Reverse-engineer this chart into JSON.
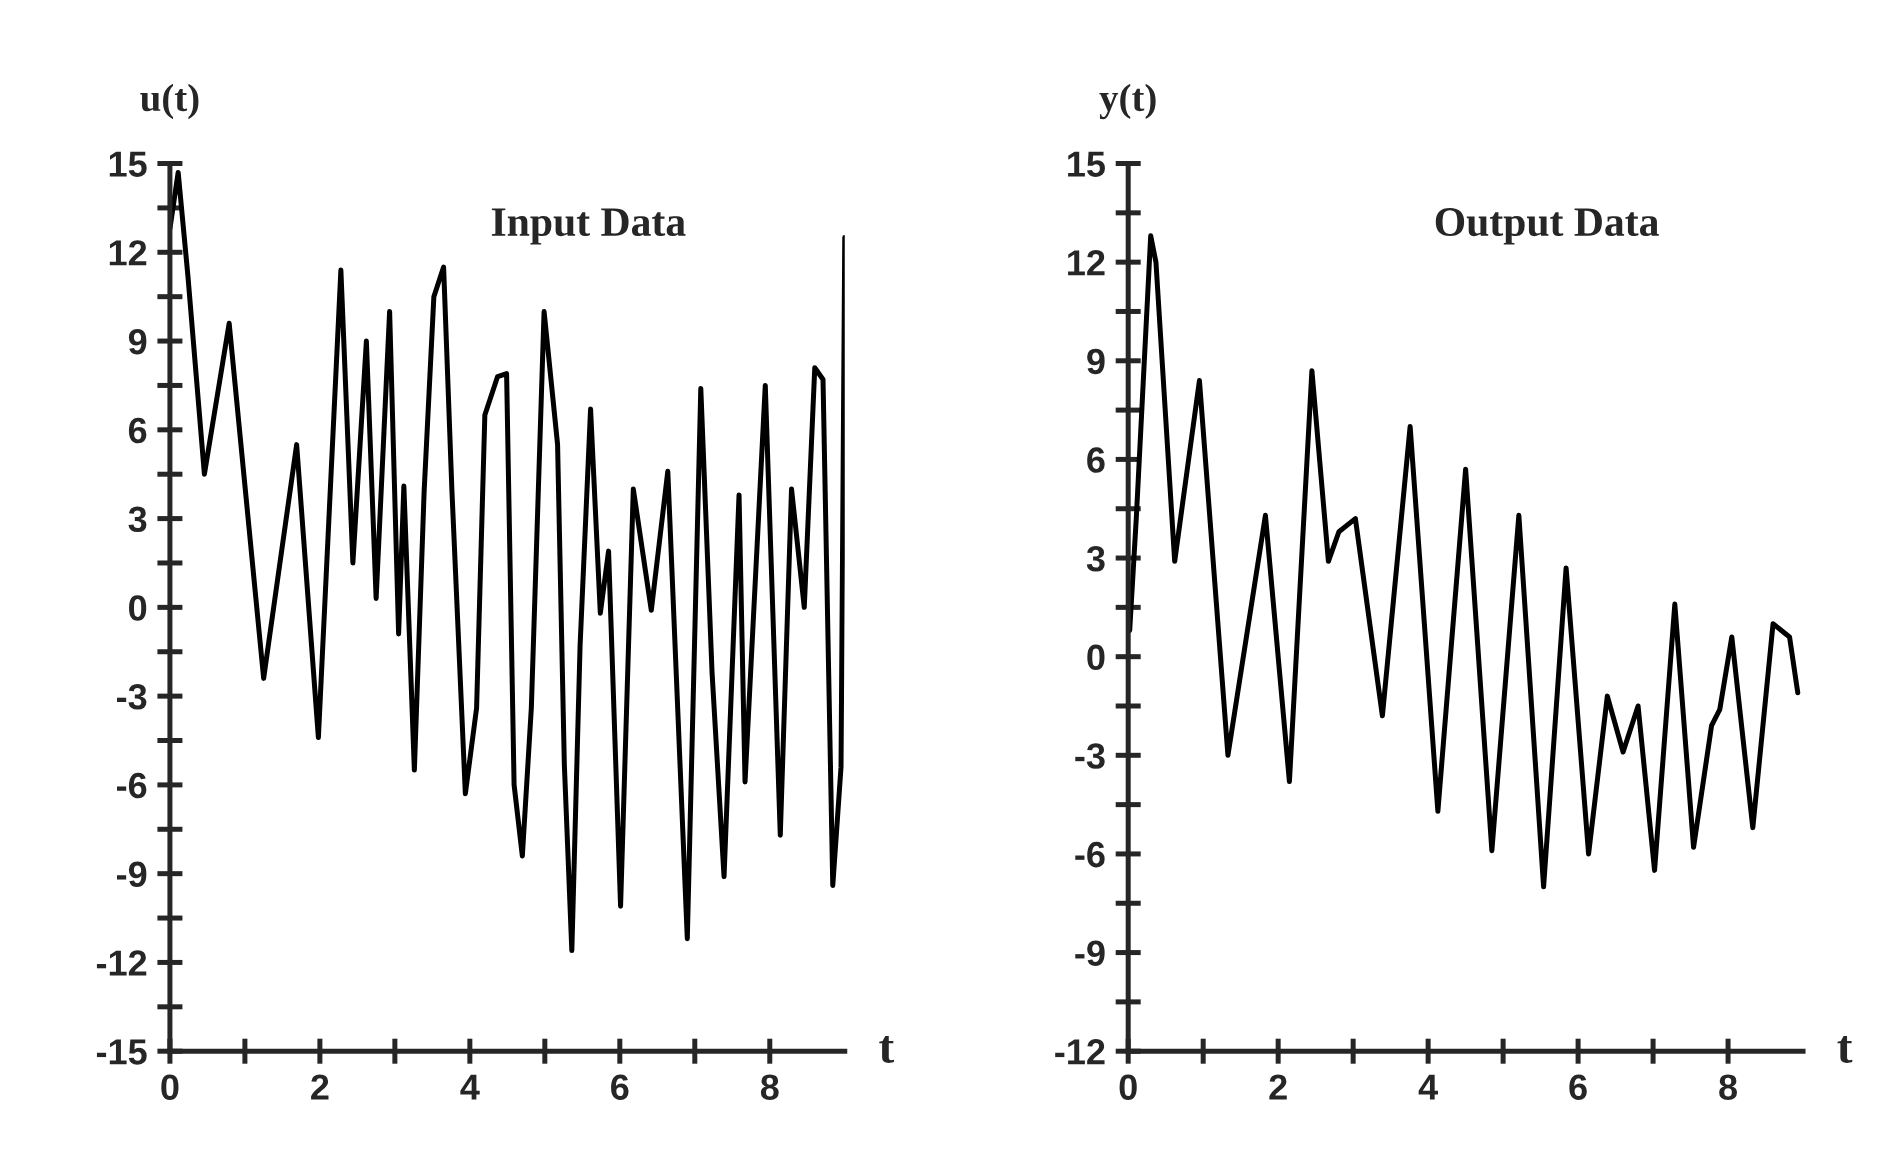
{
  "chart_data": [
    {
      "type": "line",
      "title": "Input Data",
      "xlabel": "t",
      "ylabel": "u(t)",
      "xlim": [
        0,
        9
      ],
      "ylim": [
        -15,
        15
      ],
      "xticks": [
        0,
        {
          "value": 1,
          "label": null
        },
        2,
        {
          "value": 3,
          "label": null
        },
        4,
        {
          "value": 5,
          "label": null
        },
        6,
        {
          "value": 7,
          "label": null
        },
        8
      ],
      "yticks": [
        -15,
        {
          "value": -13.5,
          "label": null
        },
        -12,
        {
          "value": -10.5,
          "label": null
        },
        -9,
        {
          "value": -7.5,
          "label": null
        },
        -6,
        {
          "value": -4.5,
          "label": null
        },
        -3,
        {
          "value": -1.5,
          "label": null
        },
        0,
        {
          "value": 1.5,
          "label": null
        },
        3,
        {
          "value": 4.5,
          "label": null
        },
        6,
        {
          "value": 7.5,
          "label": null
        },
        9,
        {
          "value": 10.5,
          "label": null
        },
        12,
        {
          "value": 13.5,
          "label": null
        },
        15
      ],
      "grid": false,
      "legend": false,
      "series": [
        {
          "color": "#000000",
          "x": [
            0,
            0.11,
            0.24,
            0.46,
            0.79,
            1.25,
            1.69,
            1.98,
            2.28,
            2.44,
            2.62,
            2.75,
            2.93,
            3.05,
            3.12,
            3.26,
            3.39,
            3.52,
            3.65,
            3.76,
            3.94,
            4.09,
            4.2,
            4.37,
            4.49,
            4.59,
            4.7,
            4.82,
            4.99,
            5.17,
            5.26,
            5.36,
            5.47,
            5.61,
            5.74,
            5.85,
            6.01,
            6.18,
            6.42,
            6.64,
            6.9,
            7.08,
            7.23,
            7.39,
            7.59,
            7.67,
            7.94,
            8.14,
            8.29,
            8.46,
            8.6,
            8.71,
            8.84,
            8.95,
            9.0
          ],
          "values": [
            12.8,
            14.7,
            11.2,
            4.5,
            9.6,
            -2.4,
            5.5,
            -4.4,
            11.4,
            1.5,
            9.0,
            0.3,
            10.0,
            -0.9,
            4.1,
            -5.5,
            3.9,
            10.5,
            11.5,
            4.0,
            -6.3,
            -3.4,
            6.5,
            7.8,
            7.9,
            -6.0,
            -8.4,
            -3.4,
            10.0,
            5.5,
            -5.3,
            -11.6,
            -1.3,
            6.7,
            -0.2,
            1.9,
            -10.1,
            4.0,
            -0.1,
            4.6,
            -11.2,
            7.4,
            -2.2,
            -9.1,
            3.8,
            -5.9,
            7.5,
            -7.7,
            4.0,
            0.0,
            8.1,
            7.7,
            -9.4,
            -5.4,
            12.5
          ]
        }
      ]
    },
    {
      "type": "line",
      "title": "Output Data",
      "xlabel": "t",
      "ylabel": "y(t)",
      "xlim": [
        0,
        9
      ],
      "ylim": [
        -12,
        15
      ],
      "xticks": [
        0,
        {
          "value": 1,
          "label": null
        },
        2,
        {
          "value": 3,
          "label": null
        },
        4,
        {
          "value": 5,
          "label": null
        },
        6,
        {
          "value": 7,
          "label": null
        },
        8
      ],
      "yticks": [
        -12,
        {
          "value": -10.5,
          "label": null
        },
        -9,
        {
          "value": -7.5,
          "label": null
        },
        -6,
        {
          "value": -4.5,
          "label": null
        },
        -3,
        {
          "value": -1.5,
          "label": null
        },
        0,
        {
          "value": 1.5,
          "label": null
        },
        3,
        {
          "value": 4.5,
          "label": null
        },
        6,
        {
          "value": 7.5,
          "label": null
        },
        9,
        {
          "value": 10.5,
          "label": null
        },
        12,
        {
          "value": 13.5,
          "label": null
        },
        15
      ],
      "grid": false,
      "legend": false,
      "series": [
        {
          "color": "#000000",
          "x": [
            0.02,
            0.11,
            0.3,
            0.37,
            0.62,
            0.95,
            1.33,
            1.83,
            2.15,
            2.45,
            2.67,
            2.81,
            3.03,
            3.39,
            3.76,
            4.13,
            4.5,
            4.85,
            5.21,
            5.54,
            5.84,
            6.14,
            6.39,
            6.6,
            6.8,
            7.02,
            7.29,
            7.54,
            7.78,
            7.89,
            8.05,
            8.33,
            8.6,
            8.82,
            8.93
          ],
          "values": [
            0.8,
            4.3,
            12.8,
            12.0,
            2.9,
            8.4,
            -3.0,
            4.3,
            -3.8,
            8.7,
            2.9,
            3.8,
            4.2,
            -1.8,
            7.0,
            -4.7,
            5.7,
            -5.9,
            4.3,
            -7.0,
            2.7,
            -6.0,
            -1.2,
            -2.9,
            -1.5,
            -6.5,
            1.6,
            -5.8,
            -2.1,
            -1.6,
            0.6,
            -5.2,
            1.0,
            0.6,
            -1.1
          ]
        }
      ]
    }
  ]
}
